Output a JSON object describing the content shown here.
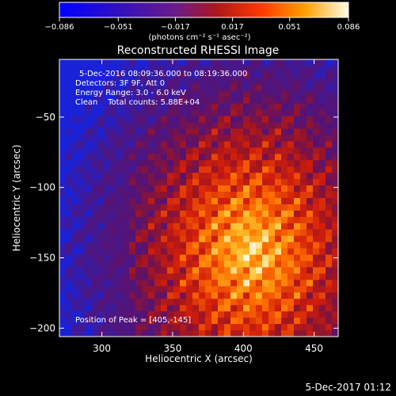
{
  "chart_data": {
    "type": "heatmap",
    "title": "Reconstructed RHESSI Image",
    "xlabel": "Heliocentric X (arcsec)",
    "ylabel": "Heliocentric Y (arcsec)",
    "xlim": [
      270,
      467
    ],
    "ylim": [
      -206,
      -9
    ],
    "xticks": [
      "300",
      "350",
      "400",
      "450"
    ],
    "yticks": [
      "-50",
      "-100",
      "-150",
      "-200"
    ],
    "annotations": [
      "5-Dec-2016 08:09:36.000 to 08:19:36.000",
      "Detectors: 3F 9F, Att 0",
      "Energy Range: 3.0 - 6.0 keV",
      "Clean    Total counts: 5.88E+04"
    ],
    "peak_label": "Position of Peak = [405,-145]",
    "peak": [
      405,
      -145
    ],
    "colorbar": {
      "ticks": [
        "-0.086",
        "-0.051",
        "-0.017",
        "0.017",
        "0.051",
        "0.086"
      ],
      "min": -0.086,
      "max": 0.086,
      "unit_label": "(photons cm⁻² s⁻¹ asec⁻²)"
    },
    "colors": {
      "cold": "#1a22d8",
      "mid_low": "#4a1070",
      "mid": "#c01818",
      "high": "#ff8a10",
      "max": "#fffbe0"
    },
    "grid": false
  },
  "footer": {
    "date": "5-Dec-2017 01:12"
  }
}
